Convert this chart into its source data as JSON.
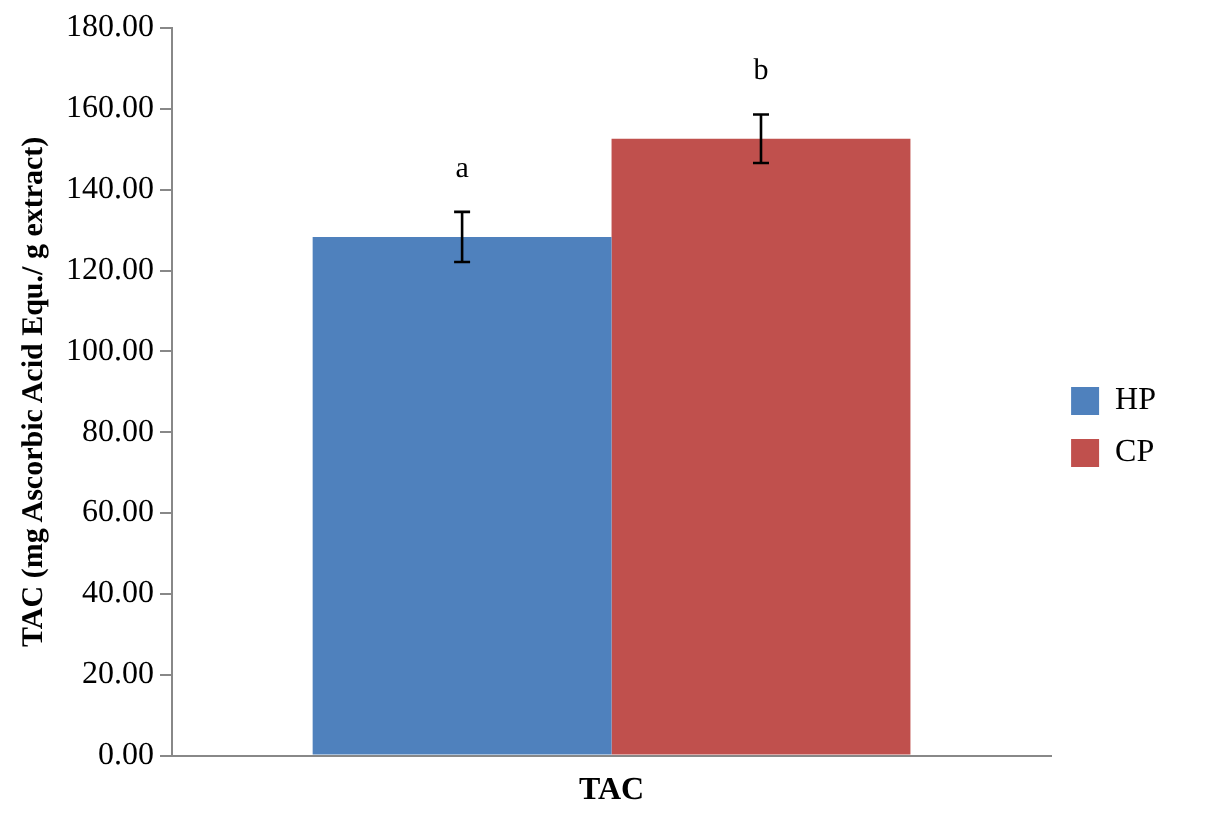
{
  "chart_data": {
    "type": "bar",
    "ylabel": "TAC (mg Ascorbic Acid Equ./ g extract)",
    "categories": [
      "TAC"
    ],
    "series": [
      {
        "name": "HP",
        "color": "#4f81bd",
        "values": [
          128.3
        ],
        "errors": [
          6.2
        ]
      },
      {
        "name": "CP",
        "color": "#c0504d",
        "values": [
          152.6
        ],
        "errors": [
          6
        ]
      }
    ],
    "annotations": [
      "a",
      "b"
    ],
    "ylim": [
      0,
      180
    ],
    "yticks": [
      {
        "value": 0,
        "label": "0.00"
      },
      {
        "value": 20,
        "label": "20.00"
      },
      {
        "value": 40,
        "label": "40.00"
      },
      {
        "value": 60,
        "label": "60.00"
      },
      {
        "value": 80,
        "label": "80.00"
      },
      {
        "value": 100,
        "label": "100.00"
      },
      {
        "value": 120,
        "label": "120.00"
      },
      {
        "value": 140,
        "label": "140.00"
      },
      {
        "value": 160,
        "label": "160.00"
      },
      {
        "value": 180,
        "label": "180.00"
      }
    ],
    "grid": false,
    "legend": "right"
  }
}
